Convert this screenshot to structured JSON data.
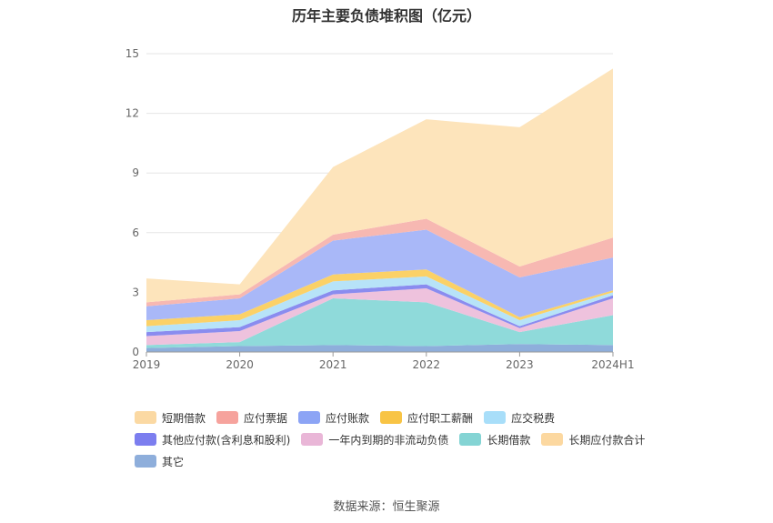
{
  "chart_data": {
    "type": "area",
    "stacked": true,
    "title": "历年主要负债堆积图（亿元）",
    "categories": [
      "2019",
      "2020",
      "2021",
      "2022",
      "2023",
      "2024H1"
    ],
    "y_ticks": [
      "0",
      "3",
      "6",
      "9",
      "12",
      "15"
    ],
    "ylim": [
      0,
      15
    ],
    "source": "数据来源：恒生聚源",
    "series": [
      {
        "name": "其它",
        "color": "#8eaedb",
        "values": [
          0.2,
          0.3,
          0.35,
          0.3,
          0.4,
          0.35
        ]
      },
      {
        "name": "长期借款",
        "color": "#8fdada",
        "values": [
          0.15,
          0.2,
          2.35,
          2.2,
          0.6,
          1.5
        ]
      },
      {
        "name": "一年内到期的非流动负债",
        "color": "#eec2dd",
        "values": [
          0.45,
          0.55,
          0.2,
          0.7,
          0.2,
          0.85
        ]
      },
      {
        "name": "其他应付款(含利息和股利)",
        "color": "#8a8cef",
        "values": [
          0.2,
          0.2,
          0.2,
          0.2,
          0.1,
          0.15
        ]
      },
      {
        "name": "应交税费",
        "color": "#b7e3f8",
        "values": [
          0.3,
          0.35,
          0.45,
          0.4,
          0.3,
          0.15
        ]
      },
      {
        "name": "应付职工薪酬",
        "color": "#fbd167",
        "values": [
          0.3,
          0.3,
          0.35,
          0.35,
          0.15,
          0.1
        ]
      },
      {
        "name": "应付账款",
        "color": "#a9b8f8",
        "values": [
          0.7,
          0.8,
          1.7,
          2.0,
          2.0,
          1.65
        ]
      },
      {
        "name": "应付票据",
        "color": "#f7b8b2",
        "values": [
          0.2,
          0.2,
          0.3,
          0.55,
          0.55,
          1.0
        ]
      },
      {
        "name": "长期应付款合计",
        "color": "#fde4bb",
        "values": [
          0.0,
          0.0,
          0.0,
          0.0,
          0.0,
          0.0
        ]
      },
      {
        "name": "短期借款",
        "color": "#fde4bb",
        "values": [
          1.2,
          0.5,
          3.4,
          5.0,
          7.0,
          8.5
        ]
      }
    ],
    "legend": [
      {
        "name": "短期借款",
        "color": "#fbd9a3"
      },
      {
        "name": "应付票据",
        "color": "#f6a39d"
      },
      {
        "name": "应付账款",
        "color": "#8ca4f5"
      },
      {
        "name": "应付职工薪酬",
        "color": "#f8c445"
      },
      {
        "name": "应交税费",
        "color": "#a8def9"
      },
      {
        "name": "其他应付款(含利息和股利)",
        "color": "#7c7eef"
      },
      {
        "name": "一年内到期的非流动负债",
        "color": "#e9b6d7"
      },
      {
        "name": "长期借款",
        "color": "#84d4d4"
      },
      {
        "name": "长期应付款合计",
        "color": "#fcd8a0"
      },
      {
        "name": "其它",
        "color": "#8eaedb"
      }
    ]
  }
}
